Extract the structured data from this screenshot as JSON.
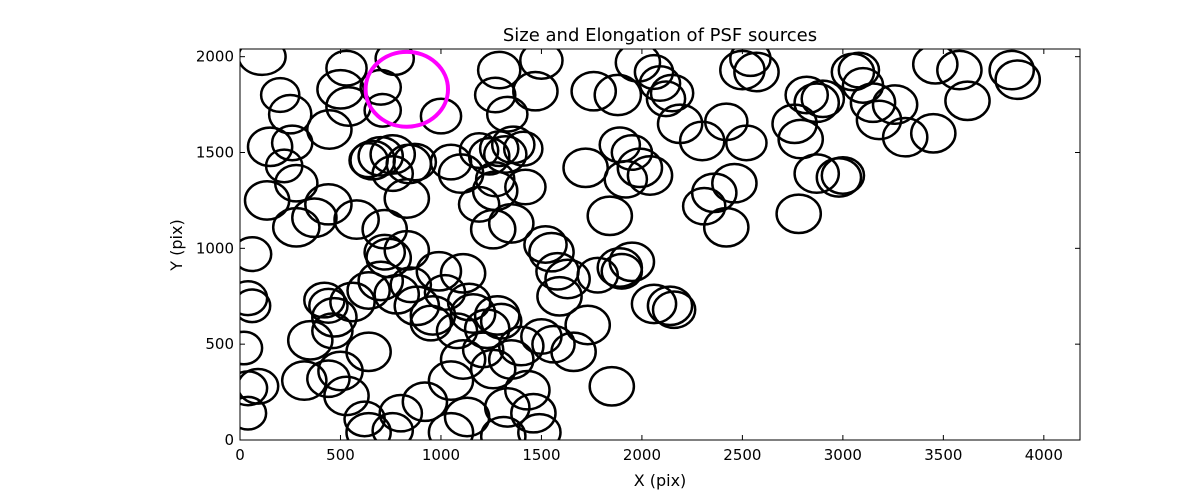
{
  "chart_data": {
    "type": "scatter",
    "title": "Size and Elongation of PSF sources",
    "xlabel": "X (pix)",
    "ylabel": "Y (pix)",
    "xlim": [
      0,
      4180
    ],
    "ylim": [
      0,
      2040
    ],
    "xticks": [
      0,
      500,
      1000,
      1500,
      2000,
      2500,
      3000,
      3500,
      4000
    ],
    "yticks": [
      0,
      500,
      1000,
      1500,
      2000
    ],
    "xtick_labels": [
      "0",
      "500",
      "1000",
      "1500",
      "2000",
      "2500",
      "3000",
      "3500",
      "4000"
    ],
    "ytick_labels": [
      "0",
      "500",
      "1000",
      "1500",
      "2000"
    ],
    "grid": false,
    "legend": "none",
    "marker": "ellipse outline",
    "series": [
      {
        "color": "#000000",
        "sources": [
          [
            110,
            2000,
            117,
            95,
            0
          ],
          [
            200,
            1800,
            95,
            88,
            0
          ],
          [
            250,
            1700,
            105,
            100,
            0
          ],
          [
            150,
            1530,
            110,
            100,
            0
          ],
          [
            260,
            1550,
            100,
            90,
            0
          ],
          [
            220,
            1430,
            90,
            85,
            0
          ],
          [
            280,
            1340,
            105,
            95,
            0
          ],
          [
            135,
            1250,
            110,
            100,
            0
          ],
          [
            280,
            1110,
            115,
            100,
            0
          ],
          [
            370,
            1160,
            110,
            100,
            0
          ],
          [
            440,
            1230,
            115,
            105,
            0
          ],
          [
            445,
            1620,
            110,
            100,
            0
          ],
          [
            540,
            1740,
            110,
            100,
            0
          ],
          [
            500,
            1830,
            115,
            100,
            0
          ],
          [
            530,
            1940,
            100,
            90,
            0
          ],
          [
            700,
            1840,
            100,
            90,
            0
          ],
          [
            710,
            1720,
            90,
            85,
            0
          ],
          [
            770,
            1990,
            95,
            85,
            0
          ],
          [
            1000,
            1690,
            100,
            90,
            0
          ],
          [
            1050,
            1450,
            100,
            90,
            0
          ],
          [
            1100,
            1390,
            110,
            100,
            0
          ],
          [
            660,
            1460,
            110,
            100,
            0
          ],
          [
            760,
            1490,
            110,
            100,
            0
          ],
          [
            760,
            1390,
            100,
            90,
            0
          ],
          [
            840,
            1440,
            110,
            100,
            0
          ],
          [
            830,
            1260,
            110,
            100,
            0
          ],
          [
            640,
            1460,
            95,
            88,
            0
          ],
          [
            700,
            1480,
            110,
            100,
            0
          ],
          [
            870,
            1450,
            105,
            95,
            0
          ],
          [
            580,
            1150,
            110,
            100,
            0
          ],
          [
            720,
            1100,
            110,
            100,
            0
          ],
          [
            1190,
            1510,
            95,
            90,
            0
          ],
          [
            1240,
            1480,
            100,
            95,
            0
          ],
          [
            1290,
            1520,
            95,
            90,
            0
          ],
          [
            1320,
            1490,
            105,
            95,
            0
          ],
          [
            1360,
            1540,
            105,
            95,
            0
          ],
          [
            1270,
            1360,
            95,
            88,
            0
          ],
          [
            1270,
            1300,
            110,
            100,
            0
          ],
          [
            1190,
            1230,
            100,
            90,
            0
          ],
          [
            1260,
            1100,
            110,
            100,
            0
          ],
          [
            1350,
            1130,
            110,
            100,
            0
          ],
          [
            1420,
            1320,
            100,
            90,
            0
          ],
          [
            1410,
            1520,
            95,
            88,
            0
          ],
          [
            1470,
            1820,
            110,
            100,
            0
          ],
          [
            1500,
            1980,
            105,
            95,
            0
          ],
          [
            1290,
            1930,
            105,
            95,
            0
          ],
          [
            1330,
            1700,
            100,
            90,
            0
          ],
          [
            1270,
            1800,
            100,
            90,
            0
          ],
          [
            1760,
            1820,
            110,
            100,
            0
          ],
          [
            1880,
            1800,
            115,
            105,
            0
          ],
          [
            1980,
            1970,
            110,
            100,
            0
          ],
          [
            2060,
            1920,
            95,
            88,
            0
          ],
          [
            2090,
            1860,
            100,
            90,
            0
          ],
          [
            2120,
            1780,
            95,
            90,
            0
          ],
          [
            2150,
            1810,
            105,
            95,
            0
          ],
          [
            2190,
            1650,
            110,
            100,
            0
          ],
          [
            2300,
            1560,
            110,
            100,
            0
          ],
          [
            2420,
            1660,
            105,
            95,
            0
          ],
          [
            2520,
            1550,
            100,
            90,
            0
          ],
          [
            2540,
            1990,
            100,
            90,
            0
          ],
          [
            2570,
            1920,
            110,
            100,
            0
          ],
          [
            2500,
            1930,
            110,
            100,
            0
          ],
          [
            1890,
            1540,
            100,
            90,
            0
          ],
          [
            1950,
            1500,
            100,
            90,
            0
          ],
          [
            1990,
            1420,
            110,
            100,
            0
          ],
          [
            2040,
            1380,
            110,
            100,
            0
          ],
          [
            1920,
            1360,
            105,
            95,
            0
          ],
          [
            1720,
            1420,
            110,
            100,
            0
          ],
          [
            2460,
            1340,
            110,
            100,
            0
          ],
          [
            2360,
            1290,
            110,
            100,
            0
          ],
          [
            2310,
            1220,
            105,
            95,
            0
          ],
          [
            2420,
            1110,
            110,
            100,
            0
          ],
          [
            1840,
            1170,
            110,
            100,
            0
          ],
          [
            2780,
            1180,
            110,
            100,
            0
          ],
          [
            2760,
            1650,
            110,
            100,
            0
          ],
          [
            2820,
            1800,
            105,
            95,
            0
          ],
          [
            2870,
            1760,
            110,
            100,
            0
          ],
          [
            2900,
            1780,
            105,
            95,
            0
          ],
          [
            2790,
            1570,
            110,
            100,
            0
          ],
          [
            2870,
            1390,
            110,
            100,
            0
          ],
          [
            2980,
            1370,
            110,
            100,
            0
          ],
          [
            3000,
            1380,
            105,
            95,
            0
          ],
          [
            3050,
            1920,
            105,
            95,
            0
          ],
          [
            3080,
            1930,
            100,
            90,
            0
          ],
          [
            3100,
            1850,
            100,
            90,
            0
          ],
          [
            3150,
            1760,
            110,
            100,
            0
          ],
          [
            3180,
            1670,
            110,
            100,
            0
          ],
          [
            3260,
            1750,
            110,
            100,
            0
          ],
          [
            3310,
            1580,
            110,
            100,
            0
          ],
          [
            3450,
            1600,
            110,
            100,
            0
          ],
          [
            3460,
            1960,
            110,
            100,
            0
          ],
          [
            3580,
            1930,
            110,
            100,
            0
          ],
          [
            3620,
            1770,
            110,
            100,
            0
          ],
          [
            3840,
            1930,
            110,
            100,
            0
          ],
          [
            3870,
            1880,
            110,
            100,
            0
          ],
          [
            60,
            970,
            95,
            88,
            0
          ],
          [
            40,
            740,
            95,
            88,
            0
          ],
          [
            60,
            700,
            90,
            85,
            0
          ],
          [
            20,
            480,
            90,
            85,
            0
          ],
          [
            40,
            270,
            95,
            88,
            0
          ],
          [
            90,
            280,
            100,
            90,
            0
          ],
          [
            40,
            140,
            90,
            85,
            0
          ],
          [
            320,
            310,
            110,
            100,
            0
          ],
          [
            440,
            320,
            105,
            95,
            0
          ],
          [
            500,
            360,
            110,
            100,
            0
          ],
          [
            530,
            230,
            110,
            100,
            0
          ],
          [
            350,
            520,
            110,
            100,
            0
          ],
          [
            460,
            570,
            100,
            90,
            0
          ],
          [
            470,
            640,
            110,
            100,
            0
          ],
          [
            420,
            730,
            100,
            90,
            0
          ],
          [
            440,
            700,
            95,
            88,
            0
          ],
          [
            560,
            720,
            110,
            100,
            0
          ],
          [
            640,
            780,
            105,
            95,
            0
          ],
          [
            700,
            830,
            110,
            100,
            0
          ],
          [
            780,
            760,
            110,
            100,
            0
          ],
          [
            850,
            810,
            100,
            90,
            0
          ],
          [
            720,
            980,
            100,
            90,
            0
          ],
          [
            740,
            950,
            110,
            100,
            0
          ],
          [
            830,
            990,
            110,
            100,
            0
          ],
          [
            880,
            700,
            110,
            100,
            0
          ],
          [
            960,
            650,
            110,
            100,
            0
          ],
          [
            1020,
            770,
            100,
            90,
            0
          ],
          [
            1110,
            870,
            110,
            100,
            0
          ],
          [
            1140,
            720,
            105,
            95,
            0
          ],
          [
            1160,
            660,
            110,
            100,
            0
          ],
          [
            1080,
            570,
            100,
            90,
            0
          ],
          [
            1230,
            580,
            110,
            100,
            0
          ],
          [
            1280,
            650,
            110,
            100,
            0
          ],
          [
            1300,
            620,
            100,
            90,
            0
          ],
          [
            1210,
            470,
            100,
            90,
            0
          ],
          [
            1110,
            420,
            110,
            100,
            0
          ],
          [
            1050,
            310,
            110,
            100,
            0
          ],
          [
            1260,
            370,
            110,
            100,
            0
          ],
          [
            1350,
            420,
            110,
            100,
            0
          ],
          [
            1400,
            490,
            110,
            100,
            0
          ],
          [
            1500,
            540,
            100,
            90,
            0
          ],
          [
            1560,
            500,
            105,
            95,
            0
          ],
          [
            1660,
            460,
            110,
            100,
            0
          ],
          [
            1730,
            600,
            110,
            100,
            0
          ],
          [
            1780,
            860,
            100,
            90,
            0
          ],
          [
            1590,
            750,
            110,
            100,
            0
          ],
          [
            1630,
            840,
            110,
            100,
            0
          ],
          [
            1580,
            880,
            105,
            95,
            0
          ],
          [
            1520,
            1020,
            105,
            95,
            0
          ],
          [
            1550,
            980,
            110,
            100,
            0
          ],
          [
            1890,
            900,
            110,
            100,
            0
          ],
          [
            1950,
            930,
            110,
            100,
            0
          ],
          [
            1900,
            880,
            100,
            90,
            0
          ],
          [
            2060,
            710,
            110,
            100,
            0
          ],
          [
            2140,
            700,
            110,
            100,
            0
          ],
          [
            2160,
            680,
            105,
            95,
            0
          ],
          [
            1850,
            280,
            110,
            100,
            0
          ],
          [
            1430,
            260,
            110,
            100,
            0
          ],
          [
            1460,
            140,
            110,
            100,
            0
          ],
          [
            1490,
            40,
            105,
            95,
            0
          ],
          [
            1330,
            170,
            110,
            100,
            0
          ],
          [
            1310,
            20,
            110,
            100,
            0
          ],
          [
            1130,
            120,
            110,
            100,
            0
          ],
          [
            1050,
            40,
            110,
            100,
            0
          ],
          [
            920,
            200,
            110,
            100,
            0
          ],
          [
            800,
            140,
            105,
            95,
            0
          ],
          [
            760,
            50,
            100,
            90,
            0
          ],
          [
            620,
            110,
            100,
            90,
            0
          ],
          [
            640,
            40,
            110,
            100,
            0
          ],
          [
            990,
            880,
            110,
            100,
            0
          ],
          [
            950,
            610,
            100,
            90,
            0
          ],
          [
            640,
            460,
            110,
            100,
            0
          ]
        ]
      },
      {
        "color": "#ff00ff",
        "sources": [
          [
            830,
            1830,
            205,
            195,
            0
          ]
        ]
      }
    ]
  }
}
